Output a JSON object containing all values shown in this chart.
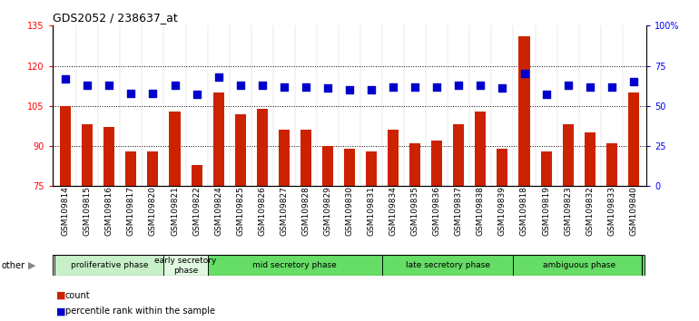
{
  "title": "GDS2052 / 238637_at",
  "samples": [
    "GSM109814",
    "GSM109815",
    "GSM109816",
    "GSM109817",
    "GSM109820",
    "GSM109821",
    "GSM109822",
    "GSM109824",
    "GSM109825",
    "GSM109826",
    "GSM109827",
    "GSM109828",
    "GSM109829",
    "GSM109830",
    "GSM109831",
    "GSM109834",
    "GSM109835",
    "GSM109836",
    "GSM109837",
    "GSM109838",
    "GSM109839",
    "GSM109818",
    "GSM109819",
    "GSM109823",
    "GSM109832",
    "GSM109833",
    "GSM109840"
  ],
  "counts": [
    105,
    98,
    97,
    88,
    88,
    103,
    83,
    110,
    102,
    104,
    96,
    96,
    90,
    89,
    88,
    96,
    91,
    92,
    98,
    103,
    89,
    131,
    88,
    98,
    95,
    91,
    110
  ],
  "percentiles": [
    67,
    63,
    63,
    58,
    58,
    63,
    57,
    68,
    63,
    63,
    62,
    62,
    61,
    60,
    60,
    62,
    62,
    62,
    63,
    63,
    61,
    70,
    57,
    63,
    62,
    62,
    65
  ],
  "phases": [
    {
      "name": "proliferative phase",
      "start": 0,
      "end": 5,
      "color": "#c8f0c8"
    },
    {
      "name": "early secretory\nphase",
      "start": 5,
      "end": 7,
      "color": "#e0f8e0"
    },
    {
      "name": "mid secretory phase",
      "start": 7,
      "end": 15,
      "color": "#66dd66"
    },
    {
      "name": "late secretory phase",
      "start": 15,
      "end": 21,
      "color": "#66dd66"
    },
    {
      "name": "ambiguous phase",
      "start": 21,
      "end": 27,
      "color": "#66dd66"
    }
  ],
  "ylim_left": [
    75,
    135
  ],
  "ylim_right": [
    0,
    100
  ],
  "yticks_left": [
    75,
    90,
    105,
    120,
    135
  ],
  "yticks_right": [
    0,
    25,
    50,
    75,
    100
  ],
  "ytick_labels_right": [
    "0",
    "25",
    "50",
    "75",
    "100%"
  ],
  "bar_color": "#cc2200",
  "dot_color": "#0000cc",
  "bar_width": 0.5,
  "dot_size": 28,
  "background_color": "#ffffff",
  "grid_color": "#000000"
}
